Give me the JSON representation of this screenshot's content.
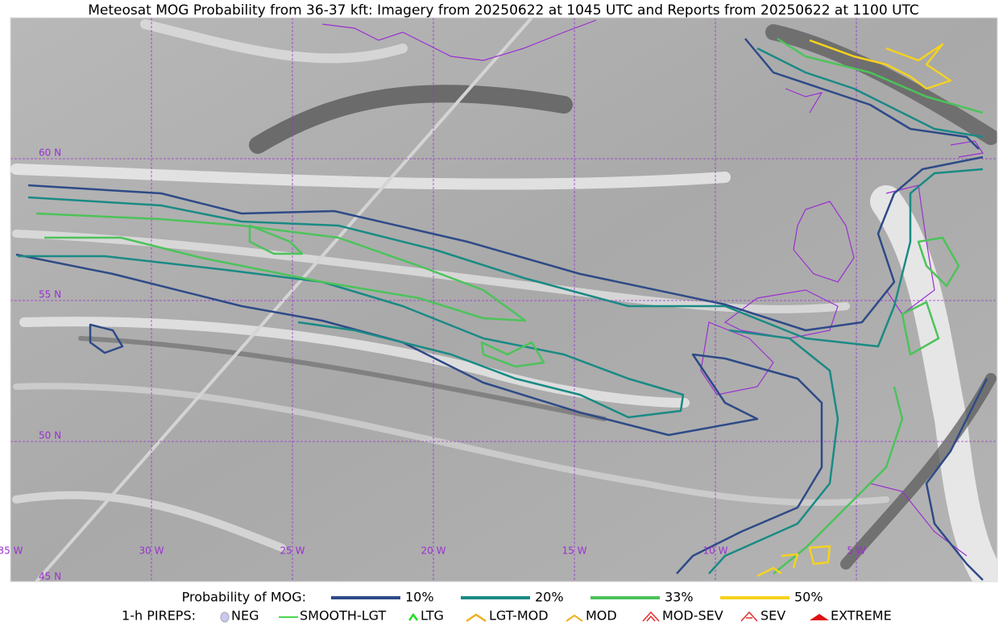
{
  "title": "Meteosat MOG Probability from 36-37 kft: Imagery from 20250622 at 1045 UTC and Reports from 20250622 at 1100 UTC",
  "map": {
    "lat_labels": [
      "60 N",
      "55 N",
      "50 N",
      "45 N"
    ],
    "lon_labels": [
      "35 W",
      "30 W",
      "25 W",
      "20 W",
      "15 W",
      "10 W",
      "5 W"
    ]
  },
  "legend": {
    "probability_title": "Probability of MOG:",
    "levels": [
      "10%",
      "20%",
      "33%",
      "50%"
    ],
    "pireps_title": "1-h PIREPS:",
    "pireps": [
      "NEG",
      "SMOOTH-LGT",
      "LTG",
      "LGT-MOD",
      "MOD",
      "MOD-SEV",
      "SEV",
      "EXTREME"
    ]
  }
}
